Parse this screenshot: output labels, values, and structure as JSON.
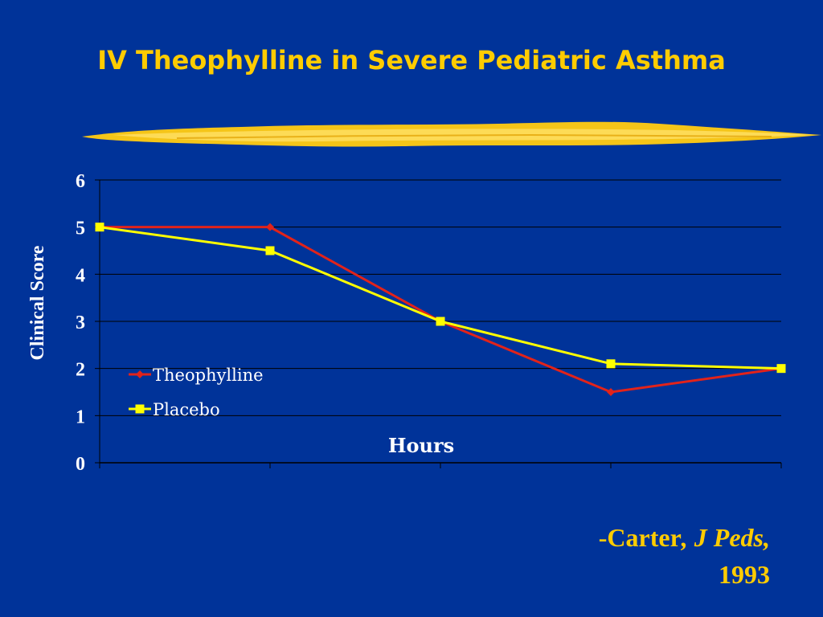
{
  "slide": {
    "title": "IV Theophylline in Severe Pediatric Asthma",
    "citation_author": "-Carter",
    "citation_journal": ", J Peds,",
    "citation_year": "1993"
  },
  "colors": {
    "background": "#003399",
    "title": "#FFCC00",
    "axis_text": "#FFFFFF",
    "gridline": "#000000",
    "theophylline": "#E2231A",
    "placebo": "#FFFF00"
  },
  "chart_data": {
    "type": "line",
    "title": "",
    "xlabel": "Hours",
    "ylabel": "Clinical Score",
    "x_categories": [
      "",
      "",
      "",
      "",
      ""
    ],
    "ylim": [
      0,
      6
    ],
    "y_ticks": [
      "0",
      "1",
      "2",
      "3",
      "4",
      "5",
      "6"
    ],
    "grid": true,
    "legend_position": "inside-left",
    "series": [
      {
        "name": "Theophylline",
        "values": [
          5,
          5,
          3,
          1.5,
          2
        ],
        "color": "#E2231A",
        "marker": "diamond"
      },
      {
        "name": "Placebo",
        "values": [
          5,
          4.5,
          3,
          2.1,
          2
        ],
        "color": "#FFFF00",
        "marker": "square"
      }
    ]
  }
}
